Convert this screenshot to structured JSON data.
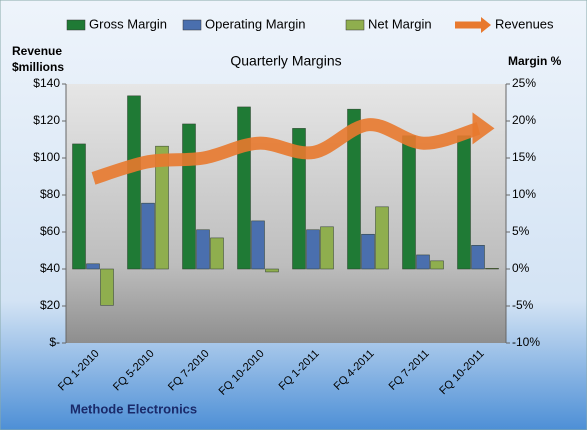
{
  "chart_data": {
    "type": "bar",
    "title": "Quarterly Margins",
    "ylabel": [
      "Revenue",
      "$millions"
    ],
    "y2label": "Margin %",
    "footer": "Methode Electronics",
    "categories": [
      "FQ 1-2010",
      "FQ 5-2010",
      "FQ 7-2010",
      "FQ 10-2010",
      "FQ 1-2011",
      "FQ 4-2011",
      "FQ 7-2011",
      "FQ 10-2011"
    ],
    "series": [
      {
        "name": "Gross Margin",
        "color": "#1f7a35",
        "axis": "y2",
        "values": [
          16.9,
          23.4,
          19.6,
          21.9,
          19.0,
          21.6,
          18.0,
          18.0
        ]
      },
      {
        "name": "Operating Margin",
        "color": "#4a6fae",
        "axis": "y2",
        "values": [
          0.7,
          8.9,
          5.3,
          6.5,
          5.3,
          4.7,
          1.9,
          3.2
        ]
      },
      {
        "name": "Net Margin",
        "color": "#8fae4e",
        "axis": "y2",
        "values": [
          -4.9,
          16.6,
          4.2,
          -0.4,
          5.7,
          8.4,
          1.1,
          0.1
        ]
      },
      {
        "name": "Revenues",
        "color": "#e8792e",
        "type": "line",
        "values": [
          89,
          98,
          100,
          108,
          103,
          118,
          108,
          116
        ]
      }
    ],
    "ylim": [
      0,
      140
    ],
    "yticks": [
      {
        "value": 0,
        "label": "$-"
      },
      {
        "value": 20,
        "label": "$20"
      },
      {
        "value": 40,
        "label": "$40"
      },
      {
        "value": 60,
        "label": "$60"
      },
      {
        "value": 80,
        "label": "$80"
      },
      {
        "value": 100,
        "label": "$100"
      },
      {
        "value": 120,
        "label": "$120"
      },
      {
        "value": 140,
        "label": "$140"
      }
    ],
    "y2lim": [
      -10,
      25
    ],
    "y2ticks": [
      {
        "value": -10,
        "label": "-10%"
      },
      {
        "value": -5,
        "label": "-5%"
      },
      {
        "value": 0,
        "label": "0%"
      },
      {
        "value": 5,
        "label": "5%"
      },
      {
        "value": 10,
        "label": "10%"
      },
      {
        "value": 15,
        "label": "15%"
      },
      {
        "value": 20,
        "label": "20%"
      },
      {
        "value": 25,
        "label": "25%"
      }
    ]
  }
}
